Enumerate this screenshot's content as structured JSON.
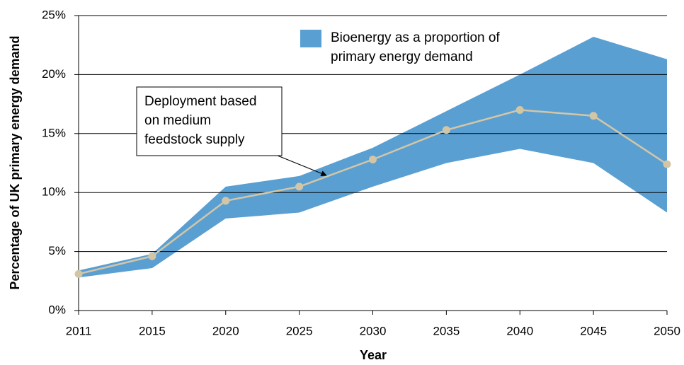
{
  "chart_data": {
    "type": "line",
    "x_label": "Year",
    "y_label": "Percentage of UK primary energy demand",
    "categories": [
      "2011",
      "2015",
      "2020",
      "2025",
      "2030",
      "2035",
      "2040",
      "2045",
      "2050"
    ],
    "band": {
      "name": "Bioenergy as a proportion of primary energy demand",
      "color": "#5a9fd2",
      "upper": [
        3.4,
        4.8,
        10.5,
        11.4,
        13.8,
        16.9,
        20.0,
        23.2,
        21.3
      ],
      "lower": [
        2.8,
        3.6,
        7.8,
        8.3,
        10.5,
        12.5,
        13.7,
        12.5,
        8.3
      ]
    },
    "line": {
      "color": "#d3c6a6",
      "values": [
        3.1,
        4.6,
        9.3,
        10.5,
        12.8,
        15.3,
        17.0,
        16.5,
        12.4
      ]
    },
    "annotation": {
      "lines": [
        "Deployment based",
        "on medium",
        "feedstock supply"
      ]
    },
    "ylim": [
      0,
      25
    ],
    "yticks": [
      {
        "value": 0,
        "label": "0%"
      },
      {
        "value": 5,
        "label": "5%"
      },
      {
        "value": 10,
        "label": "10%"
      },
      {
        "value": 15,
        "label": "15%"
      },
      {
        "value": 20,
        "label": "20%"
      },
      {
        "value": 25,
        "label": "25%"
      }
    ],
    "grid": true
  }
}
